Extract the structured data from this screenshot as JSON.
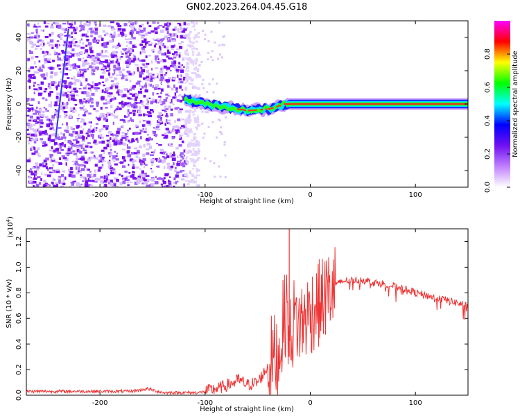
{
  "title": "GN02.2023.264.04.45.G18",
  "colors": {
    "snr_line": "#ee3333",
    "signal_core": "#ff2020",
    "background_noise": "#7a10f0",
    "axis": "#000000"
  },
  "chart_data": [
    {
      "type": "heatmap",
      "xlabel": "Height of straight line (km)",
      "ylabel": "Frequency (Hz)",
      "xlim": [
        -270,
        150
      ],
      "ylim": [
        -50,
        50
      ],
      "xticks": [
        -200,
        -100,
        0,
        100
      ],
      "yticks": [
        -40,
        -20,
        0,
        20,
        40
      ],
      "colorbar": {
        "label": "Normalized spectral amplitude",
        "range": [
          0,
          1
        ],
        "ticks": [
          "0.0",
          "0.2",
          "0.4",
          "0.6",
          "0.8"
        ],
        "colormap": [
          "#ffffff",
          "#c080ff",
          "#7010f0",
          "#0000ff",
          "#00ffff",
          "#00ff00",
          "#ffff00",
          "#ff0000",
          "#ff00ff"
        ]
      },
      "noise_region_x": [
        -270,
        -120
      ],
      "signal_track": [
        {
          "x": -120,
          "f": 3
        },
        {
          "x": -100,
          "f": 0
        },
        {
          "x": -80,
          "f": -2
        },
        {
          "x": -60,
          "f": -4
        },
        {
          "x": -40,
          "f": -3
        },
        {
          "x": -25,
          "f": 0
        },
        {
          "x": 0,
          "f": 0
        },
        {
          "x": 50,
          "f": 0
        },
        {
          "x": 100,
          "f": 0
        },
        {
          "x": 150,
          "f": 0
        }
      ]
    },
    {
      "type": "line",
      "xlabel": "Height of straight line (km)",
      "ylabel": "SNR (10 * v/v)",
      "multiplier": "(x10",
      "multiplier_exp": "4",
      "multiplier_close": ")",
      "xlim": [
        -270,
        150
      ],
      "ylim": [
        0,
        1.3
      ],
      "xticks": [
        -200,
        -100,
        0,
        100
      ],
      "yticks": [
        "0.0",
        "0.2",
        "0.4",
        "0.6",
        "0.8",
        "1.0",
        "1.2"
      ],
      "series": [
        {
          "points": [
            [
              -270,
              0.03
            ],
            [
              -250,
              0.03
            ],
            [
              -230,
              0.03
            ],
            [
              -210,
              0.03
            ],
            [
              -190,
              0.03
            ],
            [
              -170,
              0.03
            ],
            [
              -155,
              0.05
            ],
            [
              -140,
              0.02
            ],
            [
              -120,
              0.02
            ],
            [
              -105,
              0.02
            ],
            [
              -95,
              0.04
            ],
            [
              -85,
              0.06
            ],
            [
              -75,
              0.09
            ],
            [
              -68,
              0.12
            ],
            [
              -60,
              0.08
            ],
            [
              -50,
              0.1
            ],
            [
              -42,
              0.2
            ],
            [
              -36,
              0.3
            ],
            [
              -30,
              0.3
            ],
            [
              -26,
              0.55
            ],
            [
              -22,
              0.7
            ],
            [
              -20,
              0.4
            ],
            [
              -15,
              0.6
            ],
            [
              -10,
              0.55
            ],
            [
              -5,
              0.6
            ],
            [
              0,
              0.65
            ],
            [
              5,
              0.7
            ],
            [
              10,
              0.72
            ],
            [
              15,
              0.78
            ],
            [
              20,
              0.82
            ],
            [
              25,
              0.86
            ],
            [
              30,
              0.89
            ],
            [
              40,
              0.9
            ],
            [
              50,
              0.9
            ],
            [
              60,
              0.88
            ],
            [
              70,
              0.87
            ],
            [
              80,
              0.85
            ],
            [
              90,
              0.83
            ],
            [
              100,
              0.8
            ],
            [
              110,
              0.78
            ],
            [
              120,
              0.76
            ],
            [
              130,
              0.74
            ],
            [
              140,
              0.72
            ],
            [
              150,
              0.7
            ]
          ],
          "spike": {
            "x": -20,
            "y": 1.3
          }
        }
      ]
    }
  ]
}
